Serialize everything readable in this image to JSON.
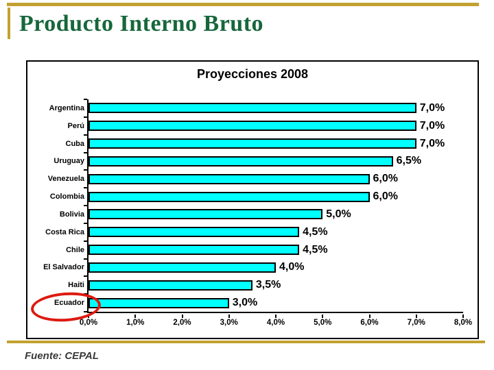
{
  "slide": {
    "title": "Producto Interno Bruto",
    "source": "Fuente: CEPAL"
  },
  "colors": {
    "accent_gold": "#c2a130",
    "title_green": "#17673b",
    "bar_fill": "#00ffff",
    "bar_border": "#000000",
    "highlight_red": "#dd1a10"
  },
  "chart_data": {
    "type": "bar",
    "orientation": "horizontal",
    "title": "Proyecciones 2008",
    "categories": [
      "Argentina",
      "Perú",
      "Cuba",
      "Uruguay",
      "Venezuela",
      "Colombia",
      "Bolivia",
      "Costa Rica",
      "Chile",
      "El Salvador",
      "Haiti",
      "Ecuador"
    ],
    "values": [
      7.0,
      7.0,
      7.0,
      6.5,
      6.0,
      6.0,
      5.0,
      4.5,
      4.5,
      4.0,
      3.5,
      3.0
    ],
    "value_labels": [
      "7,0%",
      "7,0%",
      "7,0%",
      "6,5%",
      "6,0%",
      "6,0%",
      "5,0%",
      "4,5%",
      "4,5%",
      "4,0%",
      "3,5%",
      "3,0%"
    ],
    "x_ticks": [
      "0,0%",
      "1,0%",
      "2,0%",
      "3,0%",
      "4,0%",
      "5,0%",
      "6,0%",
      "7,0%",
      "8,0%"
    ],
    "xlim": [
      0,
      8
    ],
    "grid": false,
    "legend": false,
    "highlight": {
      "category": "Ecuador",
      "marker": "red-ellipse",
      "color": "#dd1a10"
    }
  }
}
